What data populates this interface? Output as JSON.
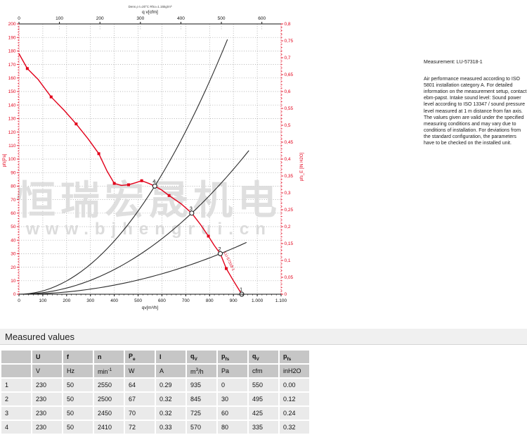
{
  "measurement_info": {
    "title": "Measurement: LU-57318-1",
    "body": "Air performance measured according to ISO 5801 installation category A. For detailed information on the measurement setup, contact ebm-papst. Intake sound level: Sound power level according to ISO 13347 / sound pressure level measured at 1 m distance from fan axis. The values given are valid under the specified measuring conditions and may vary due to conditions of installation. For deviations from the standard configuration, the parameters have to be checked on the installed unit."
  },
  "measured_values": {
    "title": "Measured values",
    "columns": [
      {
        "main": ""
      },
      {
        "main": "U"
      },
      {
        "main": "f"
      },
      {
        "main": "n"
      },
      {
        "main": "P",
        "sub": "e"
      },
      {
        "main": "I"
      },
      {
        "main": "q",
        "sub": "V"
      },
      {
        "main": "p",
        "sub": "fs"
      },
      {
        "main": "q",
        "sub": "V"
      },
      {
        "main": "p",
        "sub": "fs"
      }
    ],
    "units": [
      {
        "pre": ""
      },
      {
        "pre": "V"
      },
      {
        "pre": "Hz"
      },
      {
        "pre": "min",
        "sup": "-1"
      },
      {
        "pre": "W"
      },
      {
        "pre": "A"
      },
      {
        "pre": "m",
        "sup": "3",
        "post": "/h"
      },
      {
        "pre": "Pa"
      },
      {
        "pre": "cfm"
      },
      {
        "pre": "inH2O"
      }
    ],
    "rows": [
      [
        "1",
        "230",
        "50",
        "2550",
        "64",
        "0.29",
        "935",
        "0",
        "550",
        "0.00"
      ],
      [
        "2",
        "230",
        "50",
        "2500",
        "67",
        "0.32",
        "845",
        "30",
        "495",
        "0.12"
      ],
      [
        "3",
        "230",
        "50",
        "2450",
        "70",
        "0.32",
        "725",
        "60",
        "425",
        "0.24"
      ],
      [
        "4",
        "230",
        "50",
        "2410",
        "72",
        "0.33",
        "570",
        "80",
        "335",
        "0.32"
      ]
    ]
  },
  "chart_data": {
    "type": "line",
    "title": "Dens ρ t=20°C Rho=1.15kg/m³",
    "x_max": 1100,
    "y_max": 200,
    "cfm_per_m3h": 0.58858,
    "axes": {
      "bottom": {
        "label": "qv[m³/h]",
        "tick_step": 100,
        "labels": [
          "0",
          "100",
          "200",
          "300",
          "400",
          "500",
          "600",
          "700",
          "800",
          "900",
          "1.000",
          "1.100"
        ]
      },
      "top": {
        "label": "q v[cfm]",
        "tick_step_cfm": 100,
        "labels": [
          "0",
          "100",
          "200",
          "300",
          "400",
          "500",
          "600"
        ]
      },
      "left": {
        "label": "pfs[Pa]",
        "tick_step": 10,
        "color": "#e2001a",
        "labels": [
          "0",
          "10",
          "20",
          "30",
          "40",
          "50",
          "60",
          "70",
          "80",
          "90",
          "100",
          "110",
          "120",
          "130",
          "140",
          "150",
          "160",
          "170",
          "180",
          "190",
          "200"
        ]
      },
      "right": {
        "label": "pfs_E [IN H2O]",
        "tick_step": 0.05,
        "color": "#e2001a",
        "labels": [
          "0",
          "0,05",
          "0,1",
          "0,15",
          "0,2",
          "0,25",
          "0,3",
          "0,35",
          "0,4",
          "0,45",
          "0,5",
          "0,55",
          "0,6",
          "0,65",
          "0,7",
          "0,75",
          "0,8"
        ]
      }
    },
    "fan_curve": {
      "color": "#e2001a",
      "label": "LU-57318-1",
      "points": [
        [
          0,
          178
        ],
        [
          35,
          167
        ],
        [
          80,
          159
        ],
        [
          135,
          146
        ],
        [
          190,
          136
        ],
        [
          240,
          126
        ],
        [
          290,
          115
        ],
        [
          335,
          104
        ],
        [
          370,
          91
        ],
        [
          400,
          82
        ],
        [
          430,
          80.5
        ],
        [
          460,
          81
        ],
        [
          490,
          82.5
        ],
        [
          515,
          84
        ],
        [
          545,
          82
        ],
        [
          570,
          80
        ],
        [
          600,
          77
        ],
        [
          630,
          73
        ],
        [
          680,
          67
        ],
        [
          725,
          60
        ],
        [
          760,
          52
        ],
        [
          795,
          43
        ],
        [
          820,
          36
        ],
        [
          845,
          30
        ],
        [
          870,
          19
        ],
        [
          900,
          10
        ],
        [
          935,
          0
        ]
      ],
      "markers": [
        [
          35,
          167
        ],
        [
          135,
          146
        ],
        [
          240,
          126
        ],
        [
          335,
          104
        ],
        [
          400,
          82
        ],
        [
          460,
          81
        ],
        [
          515,
          84
        ],
        [
          630,
          73
        ],
        [
          795,
          43
        ],
        [
          870,
          19
        ]
      ]
    },
    "system_curves": [
      {
        "through_q": 570,
        "through_p": 80,
        "q_end": 875
      },
      {
        "through_q": 725,
        "through_p": 60,
        "q_end": 965
      },
      {
        "through_q": 845,
        "through_p": 30,
        "q_end": 955
      }
    ],
    "operating_points": [
      {
        "n": "1",
        "q": 935,
        "p": 0
      },
      {
        "n": "2",
        "q": 845,
        "p": 30
      },
      {
        "n": "3",
        "q": 725,
        "p": 60
      },
      {
        "n": "4",
        "q": 570,
        "p": 80
      }
    ],
    "watermark": {
      "line1": "恒瑞宏晟机电",
      "line2": "www.bjhengrui.cn",
      "color": "#d9d9d9"
    }
  }
}
